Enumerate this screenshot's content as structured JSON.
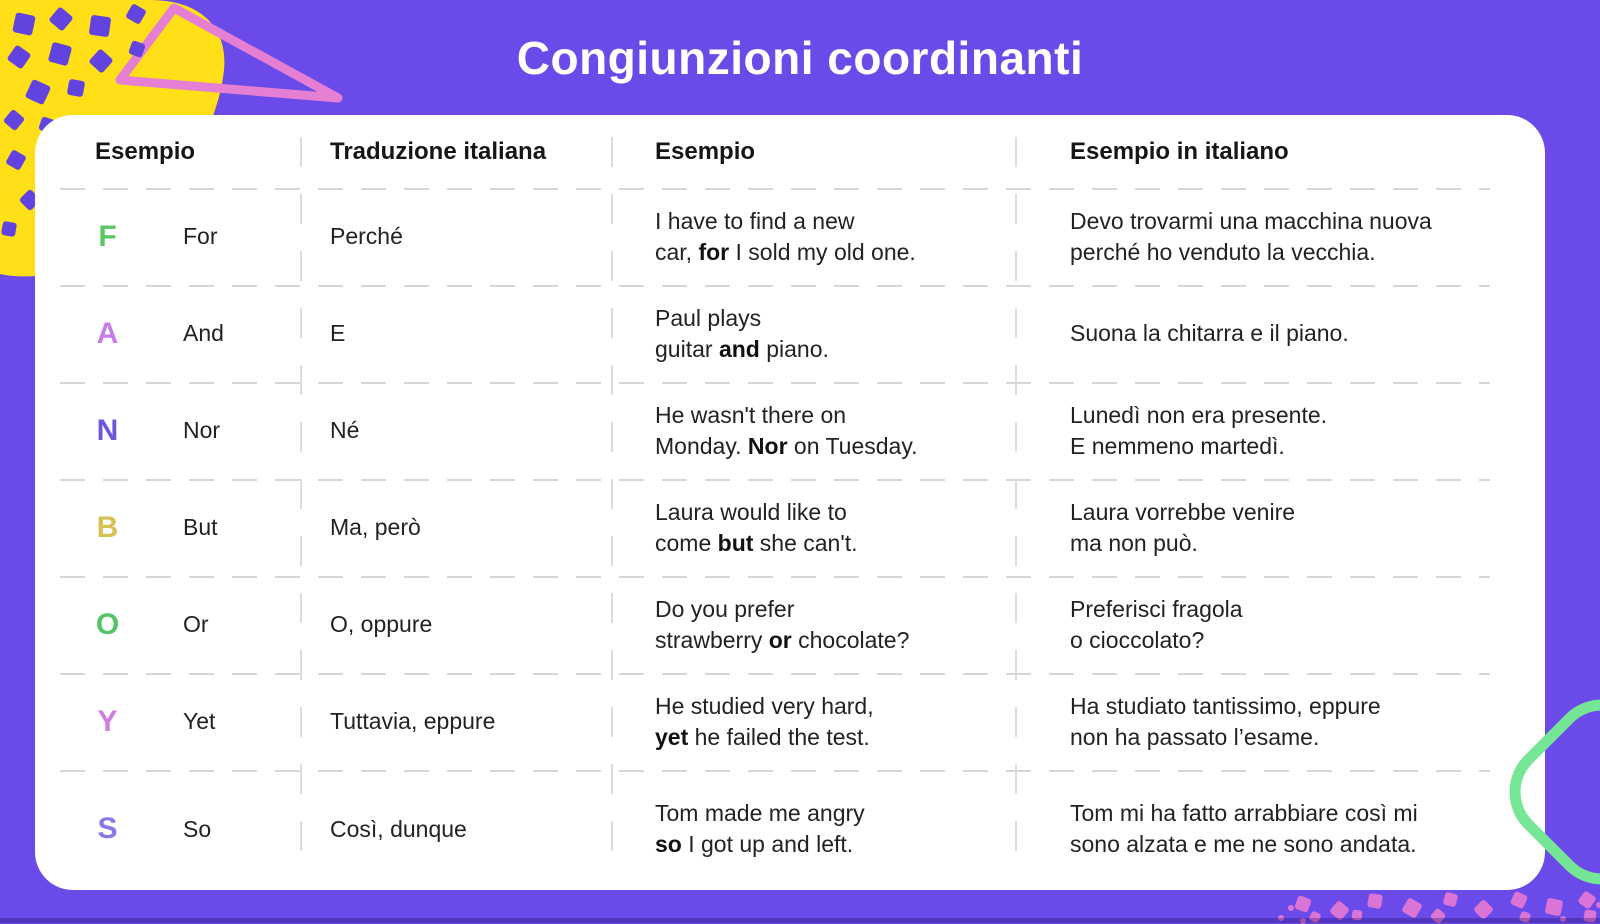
{
  "title": "Congiunzioni coordinanti",
  "table": {
    "headers": [
      "Esempio",
      "Traduzione italiana",
      "Esempio",
      "Esempio in italiano"
    ],
    "rows": [
      {
        "letter": "F",
        "letter_color": "#5BC662",
        "word": "For",
        "translation": "Perché",
        "en": {
          "l1": "I have to find a new",
          "l2a": "car, ",
          "l2b": "for",
          "l2c": " I sold my old one."
        },
        "it": {
          "l1": "Devo trovarmi una macchina nuova",
          "l2": "perché ho venduto la vecchia."
        }
      },
      {
        "letter": "A",
        "letter_color": "#C77CE8",
        "word": "And",
        "translation": "E",
        "en": {
          "l1": "Paul plays",
          "l2a": "guitar ",
          "l2b": "and",
          "l2c": " piano."
        },
        "it": {
          "l1": "Suona la chitarra e il piano.",
          "l2": ""
        }
      },
      {
        "letter": "N",
        "letter_color": "#6A57DD",
        "word": "Nor",
        "translation": "Né",
        "en": {
          "l1": "He wasn't there on",
          "l2a": "Monday. ",
          "l2b": "Nor",
          "l2c": " on Tuesday."
        },
        "it": {
          "l1": "Lunedì non era presente.",
          "l2": "E nemmeno martedì."
        }
      },
      {
        "letter": "B",
        "letter_color": "#D5C254",
        "word": "But",
        "translation": "Ma, però",
        "en": {
          "l1": "Laura would like to",
          "l2a": "come ",
          "l2b": "but",
          "l2c": " she can't."
        },
        "it": {
          "l1": "Laura vorrebbe venire",
          "l2": "ma non può."
        }
      },
      {
        "letter": "O",
        "letter_color": "#54C468",
        "word": "Or",
        "translation": "O, oppure",
        "en": {
          "l1": "Do you prefer",
          "l2a": "strawberry ",
          "l2b": "or",
          "l2c": " chocolate?"
        },
        "it": {
          "l1": "Preferisci fragola",
          "l2": "o cioccolato?"
        }
      },
      {
        "letter": "Y",
        "letter_color": "#CF7BE0",
        "word": "Yet",
        "translation": "Tuttavia, eppure",
        "en": {
          "l1": "He studied very hard,",
          "l2a": "",
          "l2b": "yet",
          "l2c": " he failed the test."
        },
        "it": {
          "l1": "Ha studiato tantissimo, eppure",
          "l2": "non ha passato l’esame."
        }
      },
      {
        "letter": "S",
        "letter_color": "#8678E6",
        "word": "So",
        "translation": "Così, dunque",
        "en": {
          "l1": "Tom made me angry",
          "l2a": "",
          "l2b": "so",
          "l2c": " I got up and left."
        },
        "it": {
          "l1": "Tom mi ha fatto arrabbiare così mi",
          "l2": "sono alzata e me ne sono andata."
        }
      }
    ]
  },
  "colors": {
    "bg": "#6A4AE8",
    "card": "#FFFFFF",
    "title_color": "#FFFFFF",
    "heading": "#161616",
    "text": "#222222",
    "dash": "#D6D6D6",
    "vdash": "#DCDCDC",
    "yellow": "#FFE018",
    "triangle": "#E47FD3",
    "green": "#74E695",
    "confetti_purple": "#6343E0",
    "confetti_pink": "#DA74D6"
  }
}
